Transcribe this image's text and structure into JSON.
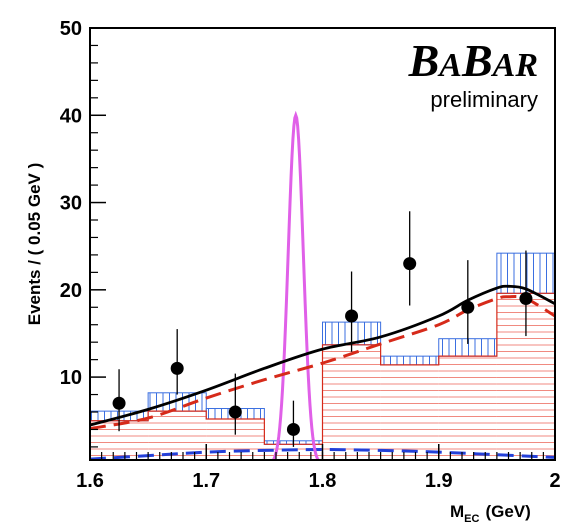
{
  "chart_data": {
    "type": "histogram",
    "experiment_label": "BABAR",
    "status_label": "preliminary",
    "xlabel_main": "M",
    "xlabel_sub": "EC",
    "xlabel_unit": "(GeV)",
    "ylabel": "Events / ( 0.05 GeV )",
    "xlim": [
      1.6,
      2.0
    ],
    "ylim": [
      0.5,
      50
    ],
    "x_ticks": [
      1.6,
      1.7,
      1.8,
      1.9,
      2.0
    ],
    "x_tick_labels": [
      "1.6",
      "1.7",
      "1.8",
      "1.9",
      "2"
    ],
    "y_ticks": [
      10,
      20,
      30,
      40,
      50
    ],
    "y_tick_labels": [
      "10",
      "20",
      "30",
      "40",
      "50"
    ],
    "bin_edges": [
      1.6,
      1.65,
      1.7,
      1.75,
      1.8,
      1.85,
      1.9,
      1.95,
      2.0
    ],
    "background_histogram": [
      5.0,
      6.1,
      5.2,
      2.3,
      13.7,
      11.4,
      12.4,
      19.6
    ],
    "background_uncertainty": [
      1.1,
      2.1,
      1.2,
      0.4,
      2.6,
      1.0,
      2.0,
      4.6
    ],
    "data_points": {
      "x": [
        1.625,
        1.675,
        1.725,
        1.775,
        1.825,
        1.875,
        1.925,
        1.975
      ],
      "y": [
        7,
        11,
        6,
        4,
        17,
        23,
        18,
        19
      ],
      "err_low": [
        3.2,
        3.0,
        2.6,
        2.0,
        4.1,
        4.8,
        4.2,
        4.3
      ],
      "err_high": [
        3.9,
        4.5,
        4.4,
        3.3,
        5.1,
        6.0,
        5.4,
        5.5
      ]
    },
    "total_fit_curve": {
      "x": [
        1.6,
        1.65,
        1.7,
        1.75,
        1.8,
        1.85,
        1.9,
        1.925,
        1.95,
        1.96,
        1.975,
        2.0
      ],
      "y": [
        4.5,
        6.3,
        8.5,
        11.0,
        13.2,
        14.6,
        17.0,
        18.8,
        20.2,
        20.4,
        20.1,
        18.4
      ]
    },
    "background_fit_curve": {
      "x": [
        1.6,
        1.65,
        1.7,
        1.75,
        1.8,
        1.85,
        1.9,
        1.925,
        1.95,
        1.96,
        1.975,
        2.0
      ],
      "y": [
        4.1,
        5.3,
        7.6,
        9.7,
        11.6,
        13.8,
        16.0,
        17.7,
        19.0,
        19.2,
        19.0,
        17.0
      ]
    },
    "peaking_background_curve": {
      "x": [
        1.6,
        1.65,
        1.7,
        1.75,
        1.8,
        1.85,
        1.9,
        1.95,
        2.0
      ],
      "y": [
        0.6,
        1.0,
        1.4,
        1.6,
        1.7,
        1.6,
        1.4,
        1.1,
        0.8
      ]
    },
    "signal_peak": {
      "center": 1.777,
      "sigma": 0.0065,
      "height": 40
    },
    "colors": {
      "data": "#000000",
      "total_fit": "#000000",
      "background_fit": "#d62a1a",
      "peaking_background": "#2340d8",
      "signal": "#e060e8",
      "histogram_outline": "#d62a1a",
      "histogram_fill_lines": "#f08a80",
      "uncertainty_hatch": "#3b6fe0"
    },
    "grid": false,
    "legend": "none"
  }
}
